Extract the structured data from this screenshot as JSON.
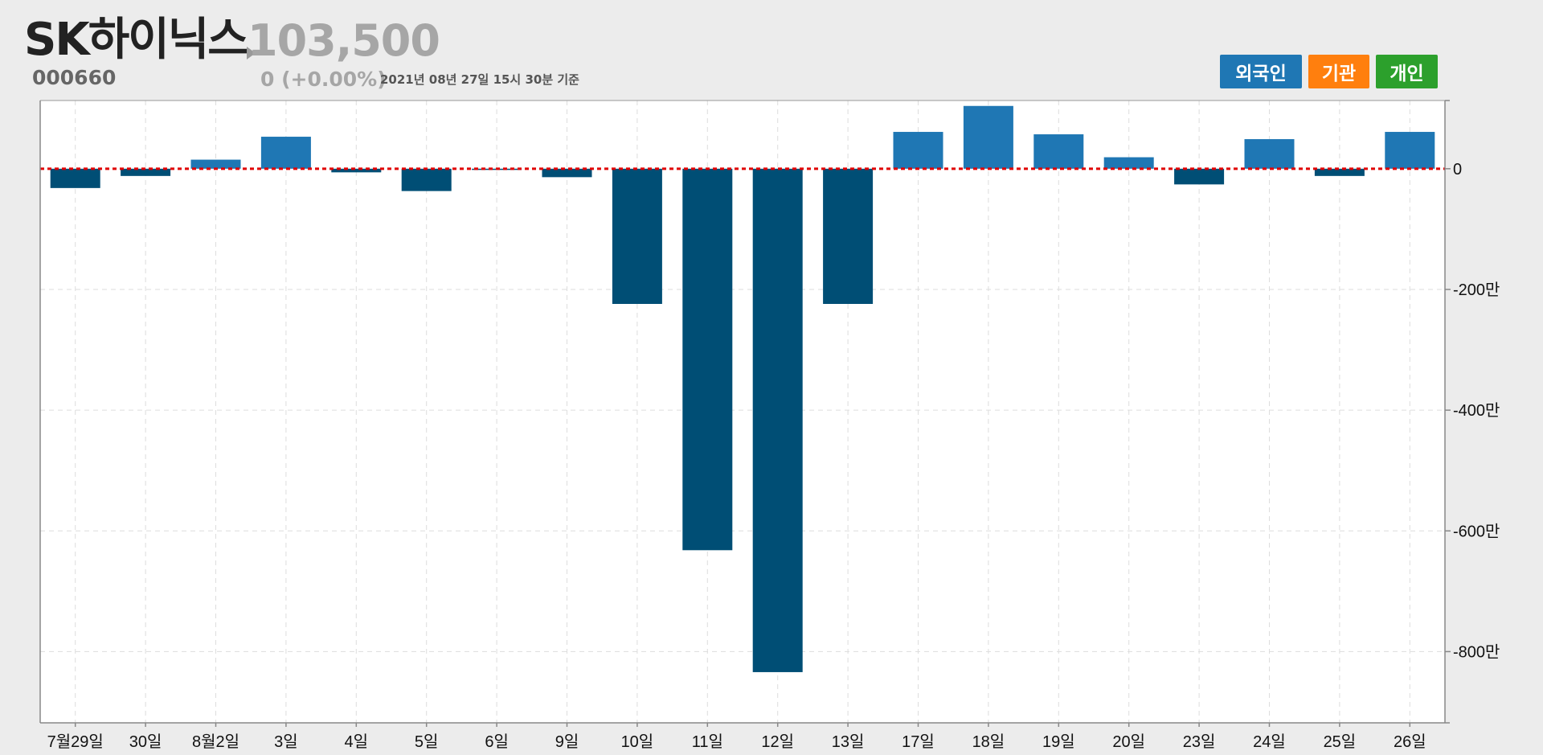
{
  "header": {
    "stock_name": "SK하이닉스",
    "price": "103,500",
    "code": "000660",
    "change": "0 (+0.00%)",
    "as_of": "2021년 08년 27일 15시 30분 기준"
  },
  "legend": [
    {
      "label": "외국인",
      "color": "#1f77b4"
    },
    {
      "label": "기관",
      "color": "#ff7f0e"
    },
    {
      "label": "개인",
      "color": "#2ca02c"
    }
  ],
  "chart_data": {
    "type": "bar",
    "categories": [
      "7월29일",
      "30일",
      "8월2일",
      "3일",
      "4일",
      "5일",
      "6일",
      "9일",
      "10일",
      "11일",
      "12일",
      "13일",
      "17일",
      "18일",
      "19일",
      "20일",
      "23일",
      "24일",
      "25일",
      "26일"
    ],
    "series": [
      {
        "name": "외국인",
        "values": [
          -32,
          -12,
          15,
          53,
          -6,
          -37,
          -2,
          -14,
          -224,
          -632,
          -834,
          -224,
          61,
          104,
          57,
          19,
          -26,
          49,
          -12,
          61
        ]
      }
    ],
    "value_unit": "만",
    "ylim": [
      -918,
      113
    ],
    "yticks": [
      0,
      -200,
      -400,
      -600,
      -800
    ],
    "ytick_labels": [
      "0",
      "-200만",
      "-400만",
      "-600만",
      "-800만"
    ],
    "positive_color": "#1f77b4",
    "negative_color": "#004e75",
    "zero_line_color": "#e00000",
    "grid": true
  }
}
